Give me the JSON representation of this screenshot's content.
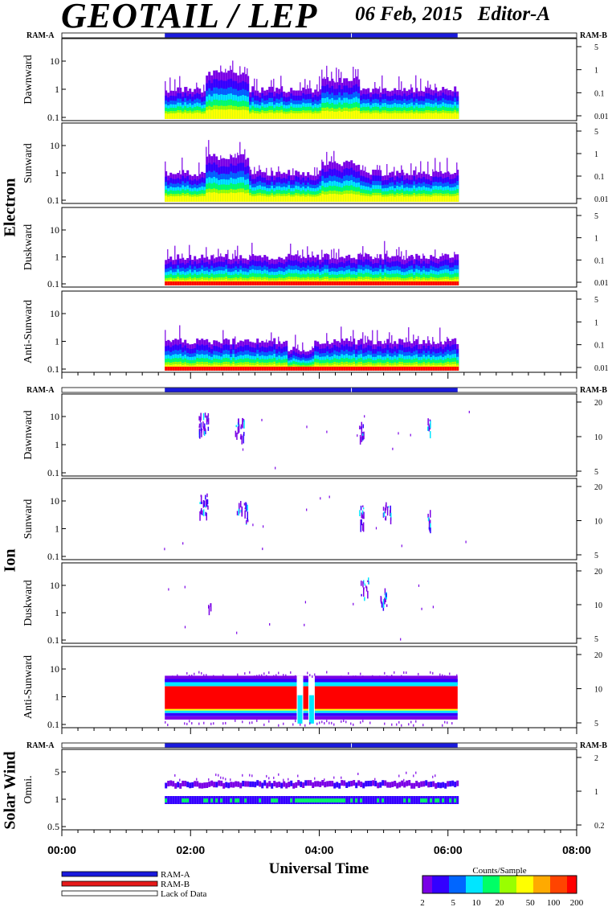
{
  "header": {
    "title": "GEOTAIL / LEP",
    "date": "06 Feb, 2015",
    "editor": "Editor-A"
  },
  "colors": {
    "ram_a": "#1a1adc",
    "ram_b": "#e61a1a",
    "lack": "#ffffff",
    "colorbar": [
      "#7a00e6",
      "#3300ff",
      "#0066ff",
      "#00e6ff",
      "#00ff66",
      "#99ff00",
      "#ffff00",
      "#ffaa00",
      "#ff4400",
      "#ff0000"
    ]
  },
  "labels": {
    "ram_a": "RAM-A",
    "ram_b": "RAM-B",
    "x_axis_title": "Universal Time",
    "x_ticks": [
      "00:00",
      "02:00",
      "04:00",
      "06:00",
      "08:00"
    ],
    "legend": [
      "RAM-A",
      "RAM-B",
      "Lack of Data"
    ],
    "colorbar_title": "Counts/Sample",
    "colorbar_ticks": [
      "2",
      "5",
      "10",
      "20",
      "50",
      "100",
      "200"
    ]
  },
  "chart_data": {
    "type": "heatmap",
    "x_range_hours": [
      0,
      8
    ],
    "data_interval_hours": [
      1.6,
      6.15
    ],
    "groups": [
      {
        "name": "Electron",
        "panels": [
          {
            "label": "Dawnward",
            "left_ticks": [
              "10",
              "1",
              "0.1"
            ],
            "right_ticks": [
              "5",
              "1",
              "0.1",
              "0.01"
            ]
          },
          {
            "label": "Sunward",
            "left_ticks": [
              "10",
              "1",
              "0.1"
            ],
            "right_ticks": [
              "5",
              "1",
              "0.1",
              "0.01"
            ]
          },
          {
            "label": "Duskward",
            "left_ticks": [
              "10",
              "1",
              "0.1"
            ],
            "right_ticks": [
              "5",
              "1",
              "0.1",
              "0.01"
            ]
          },
          {
            "label": "Anti-Sunward",
            "left_ticks": [
              "10",
              "1",
              "0.1"
            ],
            "right_ticks": [
              "5",
              "1",
              "0.1",
              "0.01"
            ]
          }
        ]
      },
      {
        "name": "Ion",
        "panels": [
          {
            "label": "Dawnward",
            "left_ticks": [
              "10",
              "1",
              "0.1"
            ],
            "right_ticks": [
              "20",
              "10",
              "5"
            ]
          },
          {
            "label": "Sunward",
            "left_ticks": [
              "10",
              "1",
              "0.1"
            ],
            "right_ticks": [
              "20",
              "10",
              "5"
            ]
          },
          {
            "label": "Duskward",
            "left_ticks": [
              "10",
              "1",
              "0.1"
            ],
            "right_ticks": [
              "20",
              "10",
              "5"
            ]
          },
          {
            "label": "Anti-Sunward",
            "left_ticks": [
              "10",
              "1",
              "0.1"
            ],
            "right_ticks": [
              "20",
              "10",
              "5"
            ]
          }
        ]
      },
      {
        "name": "Solar Wind",
        "panels": [
          {
            "label": "Omni.",
            "left_ticks": [
              "5",
              "1",
              "0.5"
            ],
            "right_ticks": [
              "2",
              "1",
              "0.2"
            ]
          }
        ]
      }
    ]
  }
}
